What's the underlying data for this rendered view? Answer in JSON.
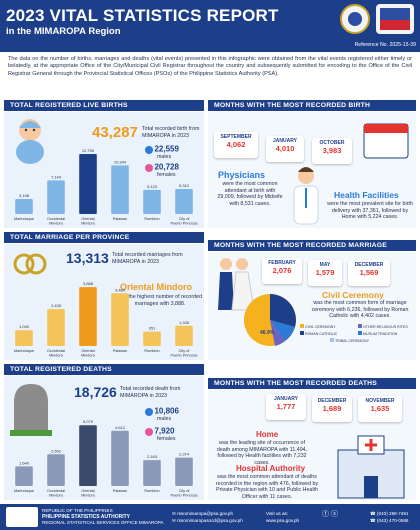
{
  "header": {
    "title": "2023 VITAL STATISTICS REPORT",
    "subtitle": "in the MIMAROPA Region",
    "reference": "Reference No. 2025-15-39"
  },
  "intro": "The data on the number of births, marriages and deaths (vital events) presented in this infographic were obtained from the vital events registered either timely or belatedly, at the appropriate Office of the City/Municipal Civil Registrar throughout the country and subsequently submitted for encoding to the Office of the Civil Registrar General through the Provincial Statistical Offices (PSOs) of the Philippine Statistics Authority (PSA).",
  "births": {
    "section_title": "TOTAL REGISTERED LIVE BIRTHS",
    "total": "43,287",
    "total_desc": "Total recorded birth from MIMAROPA in 2023",
    "males": "22,559",
    "males_label": "males",
    "females": "20,728",
    "females_label": "females"
  },
  "birth_months": {
    "section_title": "MONTHS WITH THE MOST RECORDED BIRTH",
    "cards": [
      {
        "month": "SEPTEMBER",
        "value": "4,062"
      },
      {
        "month": "JANUARY",
        "value": "4,010"
      },
      {
        "month": "OCTOBER",
        "value": "3,983"
      }
    ],
    "physicians_title": "Physicians",
    "physicians_desc": "were the most common attendant at birth with 29,009, followed by Midwife with 8,531 cases.",
    "health_title": "Health Facilities",
    "health_desc": "were the most prevalent site for birth delivery with 37,361, followed by Home with 5,224 cases."
  },
  "marriage": {
    "section_title": "TOTAL MARRIAGE PER PROVINCE",
    "total": "13,313",
    "total_desc": "Total recorded marriages from MIMAROPA in 2023",
    "top_province": "Oriental Mindoro",
    "top_desc": "had the highest number of recorded marriages with 3,888."
  },
  "marriage_months": {
    "section_title": "MONTHS WITH THE MOST RECORDED MARRIAGE",
    "cards": [
      {
        "month": "FEBRUARY",
        "value": "2,076"
      },
      {
        "month": "MAY",
        "value": "1,579"
      },
      {
        "month": "DECEMBER",
        "value": "1,569"
      }
    ],
    "ceremony_title": "Civil Ceremony",
    "ceremony_desc": "was the most common form of marriage ceremony with 6,236, followed by Roman Catholic with 4,402 cases.",
    "legend": [
      "CIVIL CEREMONY",
      "OTHER RELIGIOUS RITES",
      "ROMAN CATHOLIC",
      "MUSLIM TRADITION",
      "TRIBAL CEREMONY"
    ],
    "pct_main": "46.9%"
  },
  "deaths": {
    "section_title": "TOTAL REGISTERED DEATHS",
    "total": "18,726",
    "total_desc": "Total recorded death from MIMAROPA in 2023",
    "males": "10,806",
    "males_label": "males",
    "females": "7,920",
    "females_label": "females"
  },
  "death_months": {
    "section_title": "MONTHS WITH THE MOST RECORDED DEATHS",
    "cards": [
      {
        "month": "JANUARY",
        "value": "1,777"
      },
      {
        "month": "DECEMBER",
        "value": "1,689"
      },
      {
        "month": "NOVEMBER",
        "value": "1,635"
      }
    ],
    "home_title": "Home",
    "home_desc": "was the leading site of occurrence of death among MIMAROPA with 11,494, followed by Health facilities with 7,232 cases.",
    "hospital_title": "Hospital Authority",
    "hospital_desc": "was the most common attendant of deaths recorded in the region with 476, followed by Private Physician with 10 and Public Health Officer with 11 cases."
  },
  "footer": {
    "org1": "REPUBLIC OF THE PHILIPPINES",
    "org2": "PHILIPPINE STATISTICS AUTHORITY",
    "org3": "REGIONAL STATISTICAL SERVICES OFFICE MIMAROPA",
    "email1": "rssomimaropa@psa.gov.ph",
    "email2": "rssomimaropasocd@psa.gov.ph",
    "visit": "Visit us as:",
    "site": "www.psa.gov.ph",
    "phone1": "(043) 286-7491",
    "phone2": "(043) 470-0586"
  },
  "chart_data": [
    {
      "type": "bar",
      "title": "",
      "categories": [
        "Marinduque",
        "Occidental Mindoro",
        "Oriental Mindoro",
        "Palawan",
        "Romblon",
        "City of Puerto Princesa"
      ],
      "values": [
        3198,
        7144,
        12750,
        10344,
        5123,
        5312
      ],
      "value_labels": [
        "3,198",
        "7,144",
        "12,750",
        "10,344",
        "5,123",
        "5,312"
      ],
      "highlight_index": 2
    },
    {
      "type": "bar",
      "title": "",
      "categories": [
        "Marinduque",
        "Occidental Mindoro",
        "Oriental Mindoro",
        "Palawan",
        "Romblon",
        "City of Puerto Princesa"
      ],
      "values": [
        1040,
        2435,
        3888,
        3480,
        951,
        1335
      ],
      "value_labels": [
        "1,040",
        "2,435",
        "3,888",
        "3,480",
        "951",
        "1,335"
      ],
      "highlight_index": 2
    },
    {
      "type": "bar",
      "title": "",
      "categories": [
        "Marinduque",
        "Occidental Mindoro",
        "Oriental Mindoro",
        "Palawan",
        "Romblon",
        "City of Puerto Princesa"
      ],
      "values": [
        1640,
        2652,
        5079,
        4612,
        2163,
        2374
      ],
      "value_labels": [
        "1,640",
        "2,652",
        "5,079",
        "4,612",
        "2,163",
        "2,374"
      ],
      "highlight_index": 2
    }
  ]
}
